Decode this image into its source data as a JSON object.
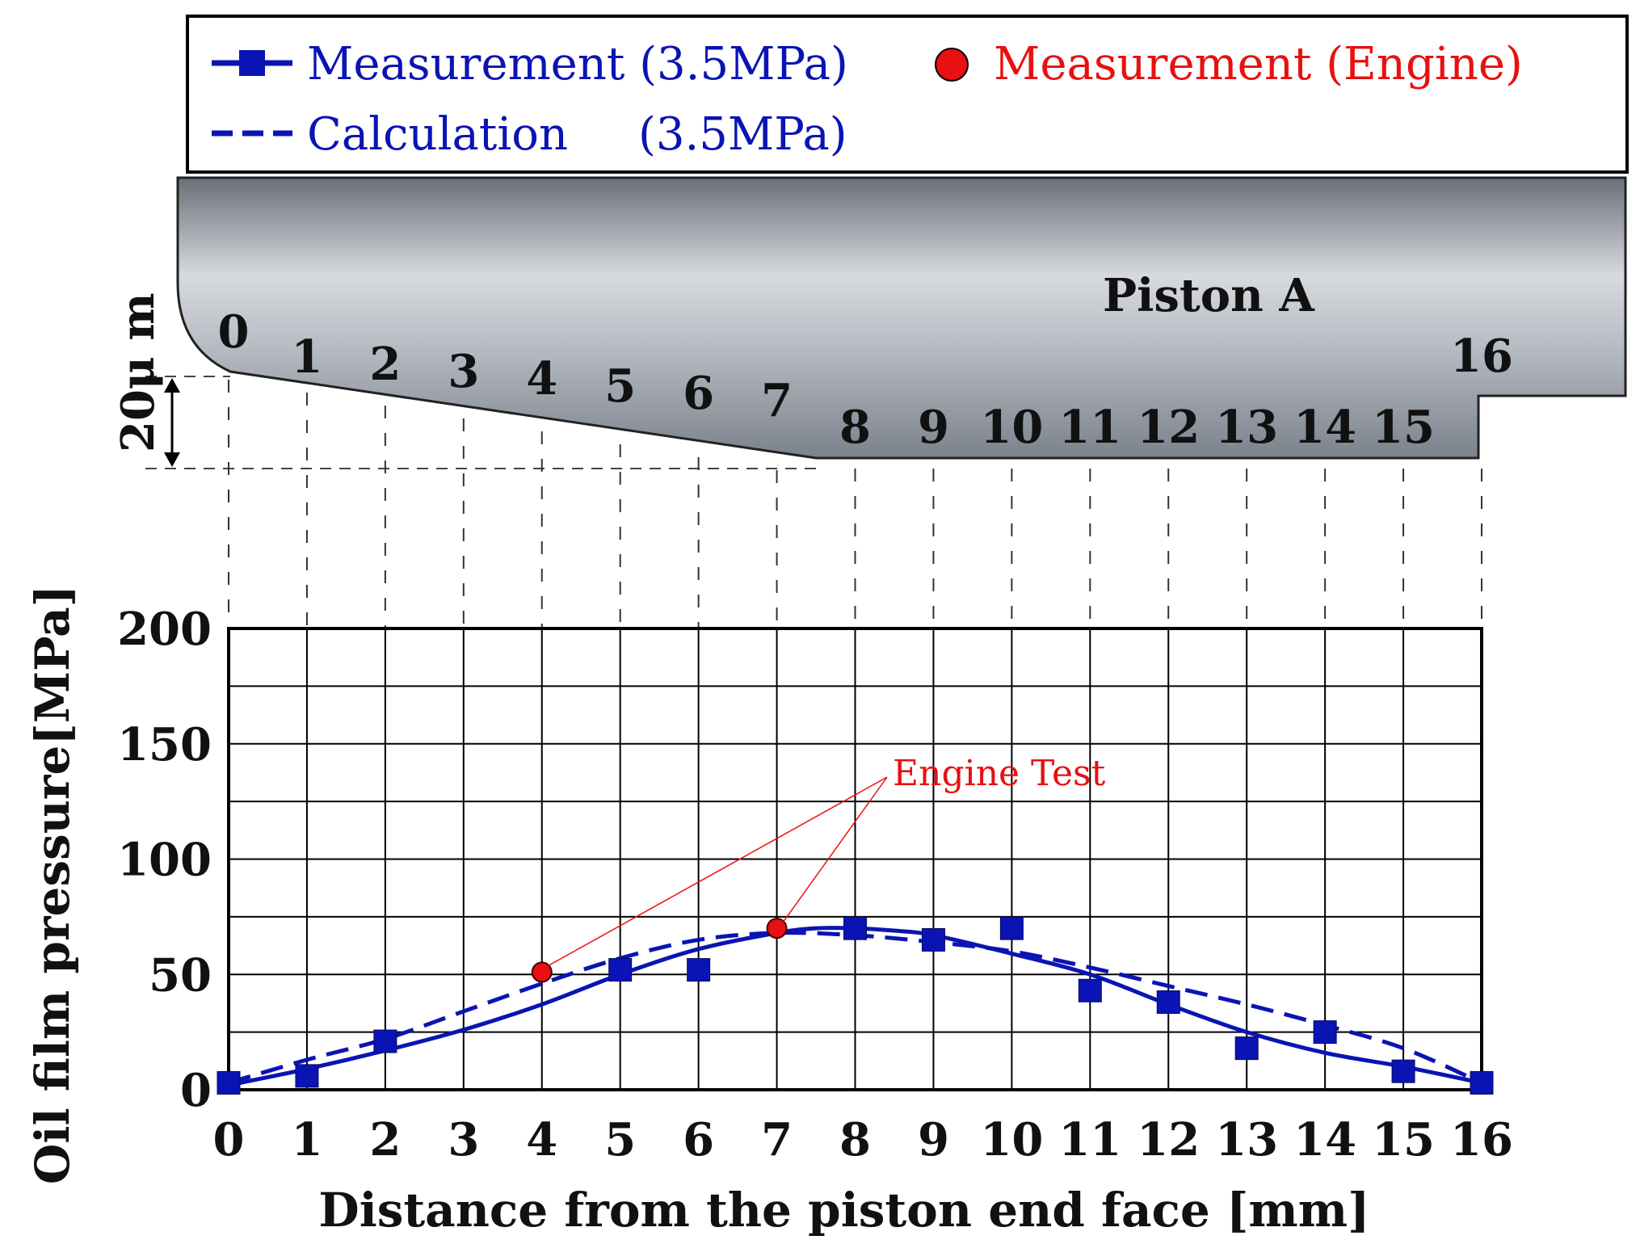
{
  "chart_data": {
    "type": "line",
    "title": "",
    "xlabel": "Distance from the piston end face [mm]",
    "ylabel": "Oil film pressure[MPa]",
    "xlim": [
      0,
      16
    ],
    "ylim": [
      0,
      200
    ],
    "x_ticks": [
      0,
      1,
      2,
      3,
      4,
      5,
      6,
      7,
      8,
      9,
      10,
      11,
      12,
      13,
      14,
      15,
      16
    ],
    "y_ticks": [
      0,
      50,
      100,
      150,
      200
    ],
    "grid": true,
    "legend": {
      "items": [
        {
          "label": "Measurement (3.5MPa)",
          "color": "#0a14b4",
          "style": "solid-square"
        },
        {
          "label": "Measurement (Engine)",
          "color": "#e81010",
          "style": "circle"
        },
        {
          "label": "Calculation",
          "label_suffix": "(3.5MPa)",
          "color": "#0a14b4",
          "style": "dashed"
        }
      ]
    },
    "series": [
      {
        "name": "Measurement (3.5MPa) markers",
        "kind": "markers",
        "x": [
          0,
          1,
          2,
          5,
          6,
          8,
          9,
          10,
          11,
          12,
          13,
          14,
          15,
          16
        ],
        "values": [
          3,
          6,
          21,
          52,
          52,
          70,
          65,
          70,
          43,
          38,
          18,
          25,
          8,
          3
        ]
      },
      {
        "name": "Measurement (3.5MPa) curve",
        "kind": "solid-line",
        "x": [
          0,
          1,
          2,
          3,
          4,
          5,
          6,
          7,
          7.5,
          8,
          8.5,
          9,
          10,
          11,
          12,
          13,
          14,
          15,
          16
        ],
        "values": [
          2,
          9,
          17,
          26,
          37,
          50,
          61,
          68,
          70,
          70,
          69,
          67,
          59,
          50,
          37,
          25,
          16,
          10,
          3
        ]
      },
      {
        "name": "Calculation (3.5MPa)",
        "kind": "dashed-line",
        "x": [
          0,
          1,
          2,
          3,
          4,
          5,
          6,
          7,
          8,
          9,
          10,
          11,
          12,
          13,
          14,
          15,
          16
        ],
        "values": [
          3,
          13,
          22,
          34,
          46,
          57,
          65,
          68,
          67,
          64,
          60,
          53,
          45,
          37,
          28,
          18,
          3
        ]
      },
      {
        "name": "Measurement (Engine)",
        "kind": "circles",
        "x": [
          4,
          7
        ],
        "values": [
          51,
          70
        ]
      }
    ],
    "annotations": [
      {
        "text": "Engine Test",
        "points_to_x": [
          4,
          7
        ],
        "color": "#e81010"
      }
    ],
    "piston_diagram": {
      "label": "Piston A",
      "scale_label": "20μ m",
      "numbers": [
        "0",
        "1",
        "2",
        "3",
        "4",
        "5",
        "6",
        "7",
        "8",
        "9",
        "10",
        "11",
        "12",
        "13",
        "14",
        "15",
        "16"
      ]
    }
  },
  "colors": {
    "blue": "#0a14b4",
    "red": "#e81010",
    "grid": "#000000"
  }
}
